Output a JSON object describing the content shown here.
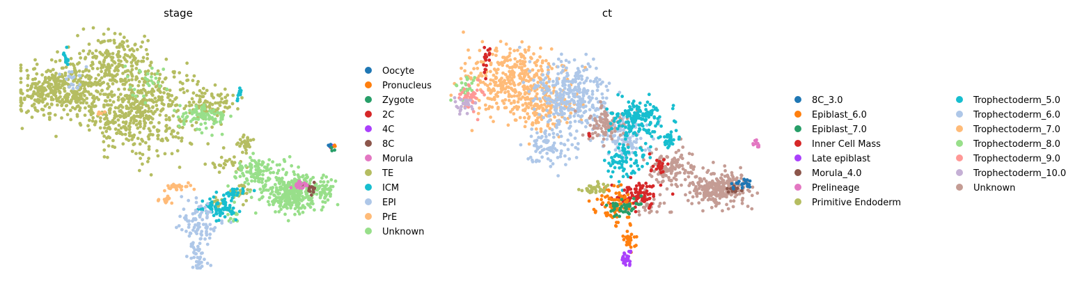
{
  "chart_data": [
    {
      "type": "scatter",
      "title": "stage",
      "xlabel": "",
      "ylabel": "",
      "axes_visible": false,
      "grid": false,
      "legend_placement": "right",
      "legend": [
        {
          "name": "Oocyte",
          "color": "#1f77b4"
        },
        {
          "name": "Pronucleus",
          "color": "#ff7f0e"
        },
        {
          "name": "Zygote",
          "color": "#279e68"
        },
        {
          "name": "2C",
          "color": "#d62728"
        },
        {
          "name": "4C",
          "color": "#aa40fc"
        },
        {
          "name": "8C",
          "color": "#8c564b"
        },
        {
          "name": "Morula",
          "color": "#e377c2"
        },
        {
          "name": "TE",
          "color": "#b5bd61"
        },
        {
          "name": "ICM",
          "color": "#17becf"
        },
        {
          "name": "EPI",
          "color": "#aec7e8"
        },
        {
          "name": "PrE",
          "color": "#ffbb78"
        },
        {
          "name": "Unknown",
          "color": "#98df8a"
        }
      ],
      "clusters": [
        {
          "label": "TE",
          "x": 0.37,
          "y": 0.62,
          "sx": 0.09,
          "sy": 0.1,
          "n": 520
        },
        {
          "label": "TE",
          "x": 0.15,
          "y": 0.72,
          "sx": 0.06,
          "sy": 0.06,
          "n": 260
        },
        {
          "label": "TE",
          "x": 0.05,
          "y": 0.68,
          "sx": 0.035,
          "sy": 0.05,
          "n": 110
        },
        {
          "label": "TE",
          "x": 0.3,
          "y": 0.85,
          "sx": 0.06,
          "sy": 0.06,
          "n": 170
        },
        {
          "label": "TE",
          "x": 0.6,
          "y": 0.66,
          "sx": 0.04,
          "sy": 0.04,
          "n": 70
        },
        {
          "label": "TE",
          "x": 0.71,
          "y": 0.46,
          "sx": 0.013,
          "sy": 0.02,
          "n": 30
        },
        {
          "label": "TE",
          "x": 0.65,
          "y": 0.37,
          "sx": 0.03,
          "sy": 0.02,
          "n": 25
        },
        {
          "label": "TE",
          "x": 0.69,
          "y": 0.22,
          "sx": 0.02,
          "sy": 0.02,
          "n": 25
        },
        {
          "label": "TE",
          "x": 0.62,
          "y": 0.18,
          "sx": 0.01,
          "sy": 0.02,
          "n": 15
        },
        {
          "label": "Unknown",
          "x": 0.86,
          "y": 0.23,
          "sx": 0.04,
          "sy": 0.04,
          "n": 300
        },
        {
          "label": "Unknown",
          "x": 0.75,
          "y": 0.32,
          "sx": 0.04,
          "sy": 0.04,
          "n": 110
        },
        {
          "label": "Unknown",
          "x": 0.58,
          "y": 0.59,
          "sx": 0.04,
          "sy": 0.03,
          "n": 90
        },
        {
          "label": "Unknown",
          "x": 0.96,
          "y": 0.25,
          "sx": 0.013,
          "sy": 0.035,
          "n": 45
        },
        {
          "label": "Unknown",
          "x": 0.67,
          "y": 0.13,
          "sx": 0.012,
          "sy": 0.02,
          "n": 15
        },
        {
          "label": "Unknown",
          "x": 0.4,
          "y": 0.75,
          "sx": 0.03,
          "sy": 0.04,
          "n": 25
        },
        {
          "label": "ICM",
          "x": 0.62,
          "y": 0.16,
          "sx": 0.035,
          "sy": 0.025,
          "n": 75
        },
        {
          "label": "ICM",
          "x": 0.68,
          "y": 0.23,
          "sx": 0.015,
          "sy": 0.015,
          "n": 20
        },
        {
          "label": "ICM",
          "x": 0.14,
          "y": 0.86,
          "sx": 0.005,
          "sy": 0.02,
          "n": 14
        },
        {
          "label": "ICM",
          "x": 0.69,
          "y": 0.68,
          "sx": 0.005,
          "sy": 0.02,
          "n": 10
        },
        {
          "label": "EPI",
          "x": 0.56,
          "y": 0.09,
          "sx": 0.03,
          "sy": 0.05,
          "n": 90
        },
        {
          "label": "EPI",
          "x": 0.56,
          "y": -0.08,
          "sx": 0.012,
          "sy": 0.04,
          "n": 35
        },
        {
          "label": "EPI",
          "x": 0.16,
          "y": 0.75,
          "sx": 0.02,
          "sy": 0.03,
          "n": 20
        },
        {
          "label": "PrE",
          "x": 0.49,
          "y": 0.26,
          "sx": 0.018,
          "sy": 0.01,
          "n": 30
        },
        {
          "label": "PrE",
          "x": 0.46,
          "y": 0.2,
          "sx": 0.015,
          "sy": 0.01,
          "n": 15
        },
        {
          "label": "PrE",
          "x": 0.25,
          "y": 0.6,
          "sx": 0.01,
          "sy": 0.01,
          "n": 6
        },
        {
          "label": "8C",
          "x": 0.92,
          "y": 0.25,
          "sx": 0.01,
          "sy": 0.015,
          "n": 15
        },
        {
          "label": "Morula",
          "x": 0.88,
          "y": 0.27,
          "sx": 0.012,
          "sy": 0.012,
          "n": 20
        },
        {
          "label": "2C",
          "x": 0.98,
          "y": 0.44,
          "sx": 0.004,
          "sy": 0.006,
          "n": 3
        },
        {
          "label": "4C",
          "x": 0.98,
          "y": 0.45,
          "sx": 0.004,
          "sy": 0.006,
          "n": 3
        },
        {
          "label": "Oocyte",
          "x": 0.975,
          "y": 0.46,
          "sx": 0.004,
          "sy": 0.006,
          "n": 3
        },
        {
          "label": "Pronucleus",
          "x": 0.99,
          "y": 0.45,
          "sx": 0.004,
          "sy": 0.006,
          "n": 3
        },
        {
          "label": "Zygote",
          "x": 0.985,
          "y": 0.43,
          "sx": 0.004,
          "sy": 0.006,
          "n": 3
        }
      ]
    },
    {
      "type": "scatter",
      "title": "ct",
      "xlabel": "",
      "ylabel": "",
      "axes_visible": false,
      "grid": false,
      "legend_placement": "right",
      "legend": [
        {
          "name": "8C_3.0",
          "color": "#1f77b4"
        },
        {
          "name": "Epiblast_6.0",
          "color": "#ff7f0e"
        },
        {
          "name": "Epiblast_7.0",
          "color": "#279e68"
        },
        {
          "name": "Inner Cell Mass",
          "color": "#d62728"
        },
        {
          "name": "Late epiblast",
          "color": "#aa40fc"
        },
        {
          "name": "Morula_4.0",
          "color": "#8c564b"
        },
        {
          "name": "Prelineage",
          "color": "#e377c2"
        },
        {
          "name": "Primitive Endoderm",
          "color": "#b5bd61"
        },
        {
          "name": "Trophectoderm_5.0",
          "color": "#17becf"
        },
        {
          "name": "Trophectoderm_6.0",
          "color": "#aec7e8"
        },
        {
          "name": "Trophectoderm_7.0",
          "color": "#ffbb78"
        },
        {
          "name": "Trophectoderm_8.0",
          "color": "#98df8a"
        },
        {
          "name": "Trophectoderm_9.0",
          "color": "#ff9896"
        },
        {
          "name": "Trophectoderm_10.0",
          "color": "#c5b0d5"
        },
        {
          "name": "Unknown",
          "color": "#c49c94"
        }
      ],
      "clusters": [
        {
          "label": "Trophectoderm_7.0",
          "x": 0.2,
          "y": 0.75,
          "sx": 0.07,
          "sy": 0.08,
          "n": 360
        },
        {
          "label": "Trophectoderm_7.0",
          "x": 0.3,
          "y": 0.62,
          "sx": 0.05,
          "sy": 0.06,
          "n": 140
        },
        {
          "label": "Trophectoderm_6.0",
          "x": 0.38,
          "y": 0.68,
          "sx": 0.06,
          "sy": 0.08,
          "n": 320
        },
        {
          "label": "Trophectoderm_6.0",
          "x": 0.32,
          "y": 0.45,
          "sx": 0.05,
          "sy": 0.05,
          "n": 90
        },
        {
          "label": "Trophectoderm_6.0",
          "x": 0.55,
          "y": 0.5,
          "sx": 0.04,
          "sy": 0.05,
          "n": 110
        },
        {
          "label": "Unknown",
          "x": 0.85,
          "y": 0.25,
          "sx": 0.05,
          "sy": 0.04,
          "n": 260
        },
        {
          "label": "Unknown",
          "x": 0.7,
          "y": 0.35,
          "sx": 0.04,
          "sy": 0.04,
          "n": 120
        },
        {
          "label": "Unknown",
          "x": 0.5,
          "y": 0.55,
          "sx": 0.04,
          "sy": 0.04,
          "n": 90
        },
        {
          "label": "Unknown",
          "x": 0.62,
          "y": 0.18,
          "sx": 0.03,
          "sy": 0.03,
          "n": 40
        },
        {
          "label": "Trophectoderm_5.0",
          "x": 0.6,
          "y": 0.58,
          "sx": 0.04,
          "sy": 0.05,
          "n": 160
        },
        {
          "label": "Trophectoderm_5.0",
          "x": 0.56,
          "y": 0.38,
          "sx": 0.03,
          "sy": 0.04,
          "n": 80
        },
        {
          "label": "Trophectoderm_5.0",
          "x": 0.7,
          "y": 0.48,
          "sx": 0.012,
          "sy": 0.02,
          "n": 30
        },
        {
          "label": "Inner Cell Mass",
          "x": 0.6,
          "y": 0.22,
          "sx": 0.04,
          "sy": 0.03,
          "n": 90
        },
        {
          "label": "Inner Cell Mass",
          "x": 0.66,
          "y": 0.36,
          "sx": 0.02,
          "sy": 0.02,
          "n": 20
        },
        {
          "label": "Inner Cell Mass",
          "x": 0.12,
          "y": 0.85,
          "sx": 0.006,
          "sy": 0.035,
          "n": 18
        },
        {
          "label": "Inner Cell Mass",
          "x": 0.44,
          "y": 0.5,
          "sx": 0.004,
          "sy": 0.004,
          "n": 4
        },
        {
          "label": "Epiblast_6.0",
          "x": 0.52,
          "y": 0.17,
          "sx": 0.03,
          "sy": 0.05,
          "n": 80
        },
        {
          "label": "Epiblast_6.0",
          "x": 0.57,
          "y": 0.02,
          "sx": 0.01,
          "sy": 0.03,
          "n": 25
        },
        {
          "label": "Epiblast_7.0",
          "x": 0.55,
          "y": 0.16,
          "sx": 0.03,
          "sy": 0.02,
          "n": 40
        },
        {
          "label": "Late epiblast",
          "x": 0.56,
          "y": -0.08,
          "sx": 0.01,
          "sy": 0.02,
          "n": 25
        },
        {
          "label": "Primitive Endoderm",
          "x": 0.46,
          "y": 0.25,
          "sx": 0.02,
          "sy": 0.012,
          "n": 40
        },
        {
          "label": "Morula_4.0",
          "x": 0.9,
          "y": 0.25,
          "sx": 0.012,
          "sy": 0.015,
          "n": 15
        },
        {
          "label": "8C_3.0",
          "x": 0.93,
          "y": 0.27,
          "sx": 0.015,
          "sy": 0.012,
          "n": 20
        },
        {
          "label": "Prelineage",
          "x": 0.97,
          "y": 0.46,
          "sx": 0.006,
          "sy": 0.01,
          "n": 12
        },
        {
          "label": "Trophectoderm_8.0",
          "x": 0.05,
          "y": 0.72,
          "sx": 0.02,
          "sy": 0.03,
          "n": 25
        },
        {
          "label": "Trophectoderm_9.0",
          "x": 0.07,
          "y": 0.68,
          "sx": 0.02,
          "sy": 0.03,
          "n": 40
        },
        {
          "label": "Trophectoderm_10.0",
          "x": 0.04,
          "y": 0.64,
          "sx": 0.015,
          "sy": 0.03,
          "n": 25
        }
      ]
    }
  ]
}
